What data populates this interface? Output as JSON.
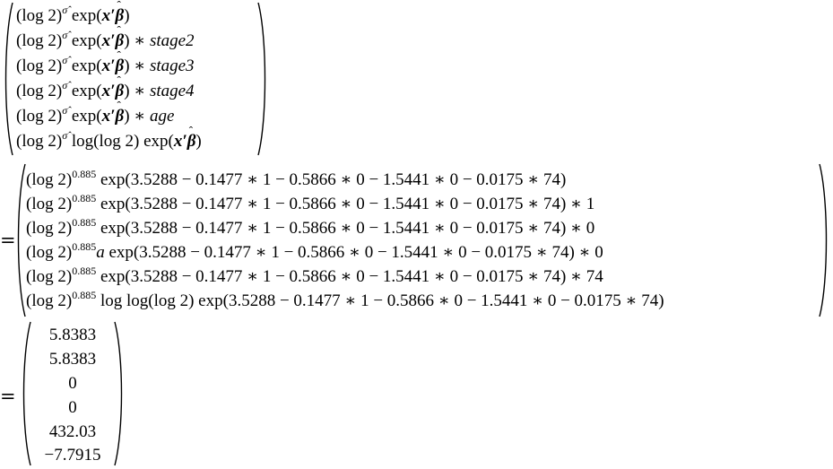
{
  "equals_sign": "=",
  "block1": {
    "rows": [
      {
        "base": "(log 2)",
        "exp": "σ̂",
        "expr": "exp(",
        "x": "x′",
        "beta": "β",
        "close": ")",
        "suffix": ""
      },
      {
        "base": "(log 2)",
        "exp": "σ̂",
        "expr": "exp(",
        "x": "x′",
        "beta": "β",
        "close": ")",
        "suffix": " ∗ ",
        "suffix_var": "stage2"
      },
      {
        "base": "(log 2)",
        "exp": "σ̂",
        "expr": "exp(",
        "x": "x′",
        "beta": "β",
        "close": ")",
        "suffix": " ∗ ",
        "suffix_var": "stage3"
      },
      {
        "base": "(log 2)",
        "exp": "σ̂",
        "expr": "exp(",
        "x": "x′",
        "beta": "β",
        "close": ")",
        "suffix": " ∗ ",
        "suffix_var": "stage4"
      },
      {
        "base": "(log 2)",
        "exp": "σ̂",
        "expr": "exp(",
        "x": "x′",
        "beta": "β",
        "close": ")",
        "suffix": " ∗ ",
        "suffix_var": "age"
      },
      {
        "base": "(log 2)",
        "exp": "σ̂",
        "expr": "log(log 2) exp(",
        "x": "x′",
        "beta": "β",
        "close": ")",
        "suffix": ""
      }
    ]
  },
  "block2": {
    "rows": [
      {
        "base": "(log 2)",
        "exp": "0.885",
        "pre": "",
        "body": "exp(3.5288 − 0.1477 ∗ 1 − 0.5866 ∗ 0 − 1.5441 ∗ 0 − 0.0175 ∗ 74)",
        "tail": ""
      },
      {
        "base": "(log 2)",
        "exp": "0.885",
        "pre": "",
        "body": "exp(3.5288 − 0.1477 ∗ 1 − 0.5866 ∗ 0 − 1.5441 ∗ 0 − 0.0175 ∗ 74)",
        "tail": " ∗ 1"
      },
      {
        "base": "(log 2)",
        "exp": "0.885",
        "pre": "",
        "body": "exp(3.5288 − 0.1477 ∗ 1 − 0.5866 ∗ 0 − 1.5441 ∗ 0 − 0.0175 ∗ 74)",
        "tail": " ∗ 0"
      },
      {
        "base": "(log 2)",
        "exp": "0.885",
        "pre": "a",
        "body": " exp(3.5288 − 0.1477 ∗ 1 − 0.5866 ∗ 0 − 1.5441 ∗ 0 − 0.0175 ∗ 74)",
        "tail": " ∗ 0"
      },
      {
        "base": "(log 2)",
        "exp": "0.885",
        "pre": "",
        "body": "exp(3.5288 − 0.1477 ∗ 1 − 0.5866 ∗ 0 − 1.5441 ∗ 0 − 0.0175 ∗ 74)",
        "tail": " ∗ 74"
      },
      {
        "base": "(log 2)",
        "exp": "0.885",
        "pre": "",
        "body": "log log(log 2) exp(3.5288 − 0.1477 ∗ 1 − 0.5866 ∗ 0 − 1.5441 ∗ 0 − 0.0175 ∗ 74)",
        "tail": ""
      }
    ]
  },
  "block3": {
    "values": [
      "5.8383",
      "5.8383",
      "0",
      "0",
      "432.03",
      "−7.7915"
    ]
  }
}
